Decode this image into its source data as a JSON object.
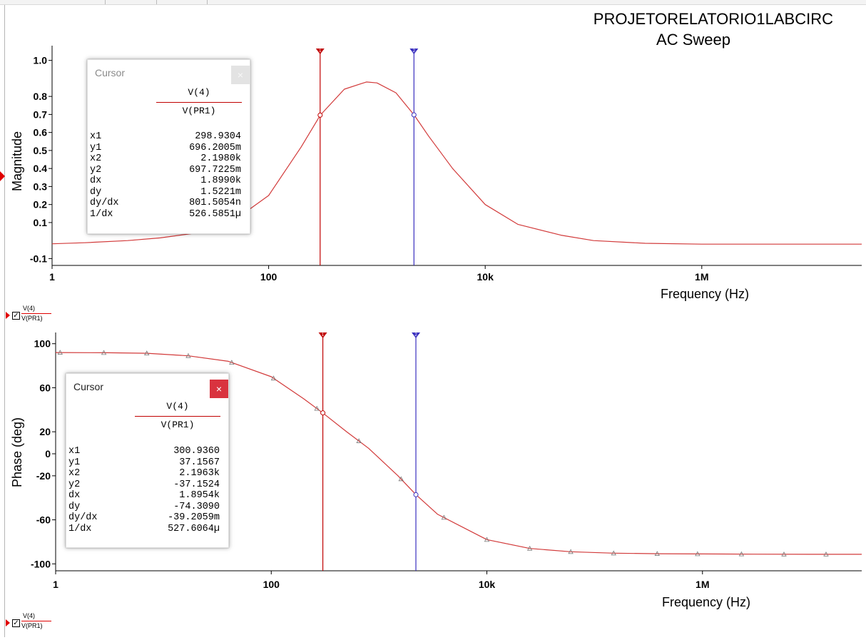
{
  "window": {
    "title_line1": "PROJETORELATORIO1LABCIRC",
    "title_line2": "AC Sweep"
  },
  "colors": {
    "trace": "#d23a3a",
    "cursor1": "#c00000",
    "cursor2": "#3a2fbf",
    "close_active": "#d9333f",
    "close_inactive": "#e0e0e0"
  },
  "chart_data": [
    {
      "type": "line",
      "id": "magnitude",
      "xlabel": "Frequency (Hz)",
      "ylabel": "Magnitude",
      "xscale": "log",
      "xlim": [
        1,
        30000000
      ],
      "ylim": [
        -0.13,
        1.05
      ],
      "xticks": [
        {
          "value": 1,
          "label": "1"
        },
        {
          "value": 100,
          "label": "100"
        },
        {
          "value": 10000,
          "label": "10k"
        },
        {
          "value": 1000000,
          "label": "1M"
        }
      ],
      "yticks": [
        {
          "value": 1.0,
          "label": "1.0"
        },
        {
          "value": 0.8,
          "label": "0.8"
        },
        {
          "value": 0.7,
          "label": "0.7"
        },
        {
          "value": 0.6,
          "label": "0.6"
        },
        {
          "value": 0.5,
          "label": "0.5"
        },
        {
          "value": 0.4,
          "label": "0.4"
        },
        {
          "value": 0.3,
          "label": "0.3"
        },
        {
          "value": 0.2,
          "label": "0.2"
        },
        {
          "value": 0.1,
          "label": "0.1"
        },
        {
          "value": -0.1,
          "label": "-0.1"
        }
      ],
      "series": [
        {
          "name": "V(4)/V(PR1)",
          "x": [
            1,
            2,
            5,
            10,
            20,
            50,
            100,
            200,
            300,
            500,
            800,
            1000,
            1500,
            2200,
            3000,
            5000,
            10000,
            20000,
            50000,
            100000,
            300000,
            1000000,
            10000000,
            30000000
          ],
          "y": [
            -0.018,
            -0.012,
            0.0,
            0.015,
            0.04,
            0.12,
            0.25,
            0.52,
            0.696,
            0.84,
            0.88,
            0.875,
            0.82,
            0.6977,
            0.58,
            0.4,
            0.2,
            0.09,
            0.03,
            0.0,
            -0.015,
            -0.02,
            -0.02,
            -0.02
          ]
        }
      ],
      "cursors": [
        {
          "x": 298.9304,
          "y": 0.6962,
          "id": "1"
        },
        {
          "x": 2198.0,
          "y": 0.6977,
          "id": "2"
        }
      ],
      "legend": {
        "numerator": "V(4)",
        "denominator": "V(PR1)"
      }
    },
    {
      "type": "line",
      "id": "phase",
      "xlabel": "Frequency (Hz)",
      "ylabel": "Phase (deg)",
      "xscale": "log",
      "xlim": [
        1,
        30000000
      ],
      "ylim": [
        -105,
        105
      ],
      "xticks": [
        {
          "value": 1,
          "label": "1"
        },
        {
          "value": 100,
          "label": "100"
        },
        {
          "value": 10000,
          "label": "10k"
        },
        {
          "value": 1000000,
          "label": "1M"
        }
      ],
      "yticks": [
        {
          "value": 100,
          "label": "100"
        },
        {
          "value": 60,
          "label": "60"
        },
        {
          "value": 20,
          "label": "20"
        },
        {
          "value": 0,
          "label": "0"
        },
        {
          "value": -20,
          "label": "-20"
        },
        {
          "value": -60,
          "label": "-60"
        },
        {
          "value": -100,
          "label": "-100"
        }
      ],
      "series": [
        {
          "name": "V(4)/V(PR1)",
          "x": [
            1,
            3,
            7,
            17,
            40,
            100,
            200,
            300,
            500,
            800,
            1500,
            2200,
            3500,
            10000,
            25000,
            60000,
            150000,
            400000,
            1000000,
            3000000,
            10000000,
            30000000
          ],
          "y": [
            92,
            91.8,
            91.3,
            89,
            84,
            70,
            50,
            37.16,
            20,
            5,
            -20,
            -37.15,
            -55,
            -78,
            -86,
            -89,
            -90.3,
            -90.8,
            -91,
            -91.2,
            -91.3,
            -91.3
          ]
        }
      ],
      "markers_x": [
        1.1,
        2.8,
        7,
        17,
        43,
        105,
        265,
        650,
        1600,
        4000,
        10000,
        25000,
        60000,
        150000,
        380000,
        900000,
        2300000,
        5700000,
        14000000
      ],
      "cursors": [
        {
          "x": 300.936,
          "y": 37.1567,
          "id": "1"
        },
        {
          "x": 2196.3,
          "y": -37.1524,
          "id": "2"
        }
      ],
      "legend": {
        "numerator": "V(4)",
        "denominator": "V(PR1)"
      }
    }
  ],
  "cursor_boxes": [
    {
      "title": "Cursor",
      "close_glyph": "×",
      "numerator": "V(4)",
      "denominator": "V(PR1)",
      "rows": [
        {
          "label": "x1",
          "value": "298.9304"
        },
        {
          "label": "y1",
          "value": "696.2005m"
        },
        {
          "label": "x2",
          "value": "2.1980k"
        },
        {
          "label": "y2",
          "value": "697.7225m"
        },
        {
          "label": "dx",
          "value": "1.8990k"
        },
        {
          "label": "dy",
          "value": "1.5221m"
        },
        {
          "label": "dy/dx",
          "value": "801.5054n"
        },
        {
          "label": "1/dx",
          "value": "526.5851µ"
        }
      ]
    },
    {
      "title": "Cursor",
      "close_glyph": "×",
      "numerator": "V(4)",
      "denominator": "V(PR1)",
      "rows": [
        {
          "label": "x1",
          "value": "300.9360"
        },
        {
          "label": "y1",
          "value": "37.1567"
        },
        {
          "label": "x2",
          "value": "2.1963k"
        },
        {
          "label": "y2",
          "value": "-37.1524"
        },
        {
          "label": "dx",
          "value": "1.8954k"
        },
        {
          "label": "dy",
          "value": "-74.3090"
        },
        {
          "label": "dy/dx",
          "value": "-39.2059m"
        },
        {
          "label": "1/dx",
          "value": "527.6064µ"
        }
      ]
    }
  ]
}
